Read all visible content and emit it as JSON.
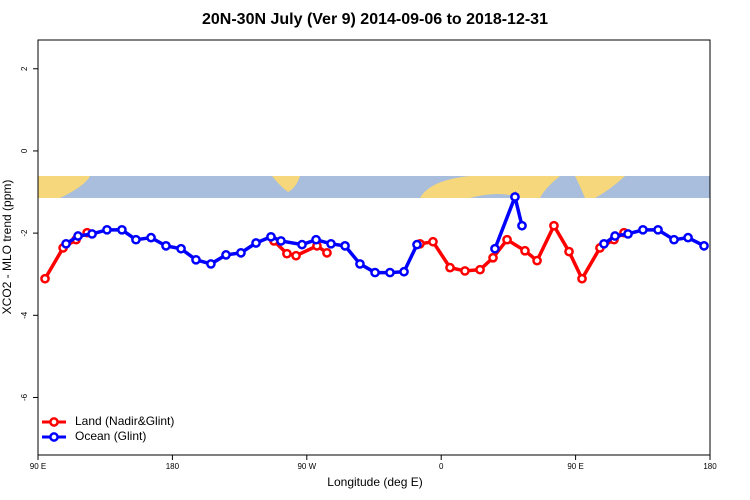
{
  "chart_data": {
    "type": "line",
    "title": "20N-30N July (Ver 9)   2014-09-06 to 2018-12-31",
    "x_label": "Longitude (deg E)",
    "y_label": "XCO2 - MLO trend (ppm)",
    "xlim": [
      90,
      540
    ],
    "xticks": [
      {
        "value": 90,
        "label": "90 E"
      },
      180,
      {
        "value": 270,
        "label": "90 W"
      },
      {
        "value": 360,
        "label": "0"
      },
      {
        "value": 450,
        "label": "90 E"
      },
      {
        "value": 540,
        "label": "180"
      }
    ],
    "ylim": [
      -7.4,
      2.7
    ],
    "yticks": [
      -6,
      -4,
      -2,
      0,
      2
    ],
    "legend": "bottom-left",
    "series": [
      {
        "name": "Land (Nadir&Glint)",
        "color": "#ff0000",
        "x": [
          94.7,
          106.8,
          115.5,
          122.9,
          null,
          248.0,
          256.7,
          262.8,
          276.8,
          283.5,
          null,
          345.8,
          354.5,
          365.9,
          375.9,
          386.0,
          394.7,
          404.1,
          416.1,
          424.2,
          435.5,
          445.6,
          454.3,
          466.3,
          475.7,
          482.4
        ],
        "values": [
          -3.11,
          -2.36,
          -2.16,
          -1.99,
          null,
          -2.19,
          -2.5,
          -2.55,
          -2.31,
          -2.48,
          null,
          -2.26,
          -2.21,
          -2.84,
          -2.92,
          -2.89,
          -2.6,
          -2.16,
          -2.43,
          -2.67,
          -1.82,
          -2.45,
          -3.11,
          -2.36,
          -2.16,
          -1.99
        ]
      },
      {
        "name": "Ocean (Glint)",
        "color": "#0000ff",
        "x": [
          108.8,
          116.8,
          126.2,
          136.2,
          146.2,
          155.6,
          165.7,
          175.7,
          185.8,
          195.8,
          205.8,
          215.9,
          225.9,
          236.0,
          246.0,
          252.7,
          266.8,
          276.2,
          286.2,
          295.6,
          305.6,
          315.7,
          325.7,
          335.1,
          343.8,
          null,
          396.0,
          409.4,
          414.1,
          null,
          469.0,
          476.4,
          485.1,
          495.1,
          505.2,
          515.9,
          525.3,
          536.0
        ],
        "values": [
          -2.26,
          -2.07,
          -2.02,
          -1.92,
          -1.92,
          -2.16,
          -2.11,
          -2.31,
          -2.38,
          -2.65,
          -2.75,
          -2.53,
          -2.48,
          -2.24,
          -2.09,
          -2.19,
          -2.28,
          -2.16,
          -2.26,
          -2.31,
          -2.75,
          -2.96,
          -2.96,
          -2.94,
          -2.28,
          null,
          -2.38,
          -1.12,
          -1.82,
          null,
          -2.26,
          -2.07,
          -2.02,
          -1.92,
          -1.92,
          -2.16,
          -2.11,
          -2.31
        ]
      }
    ]
  }
}
